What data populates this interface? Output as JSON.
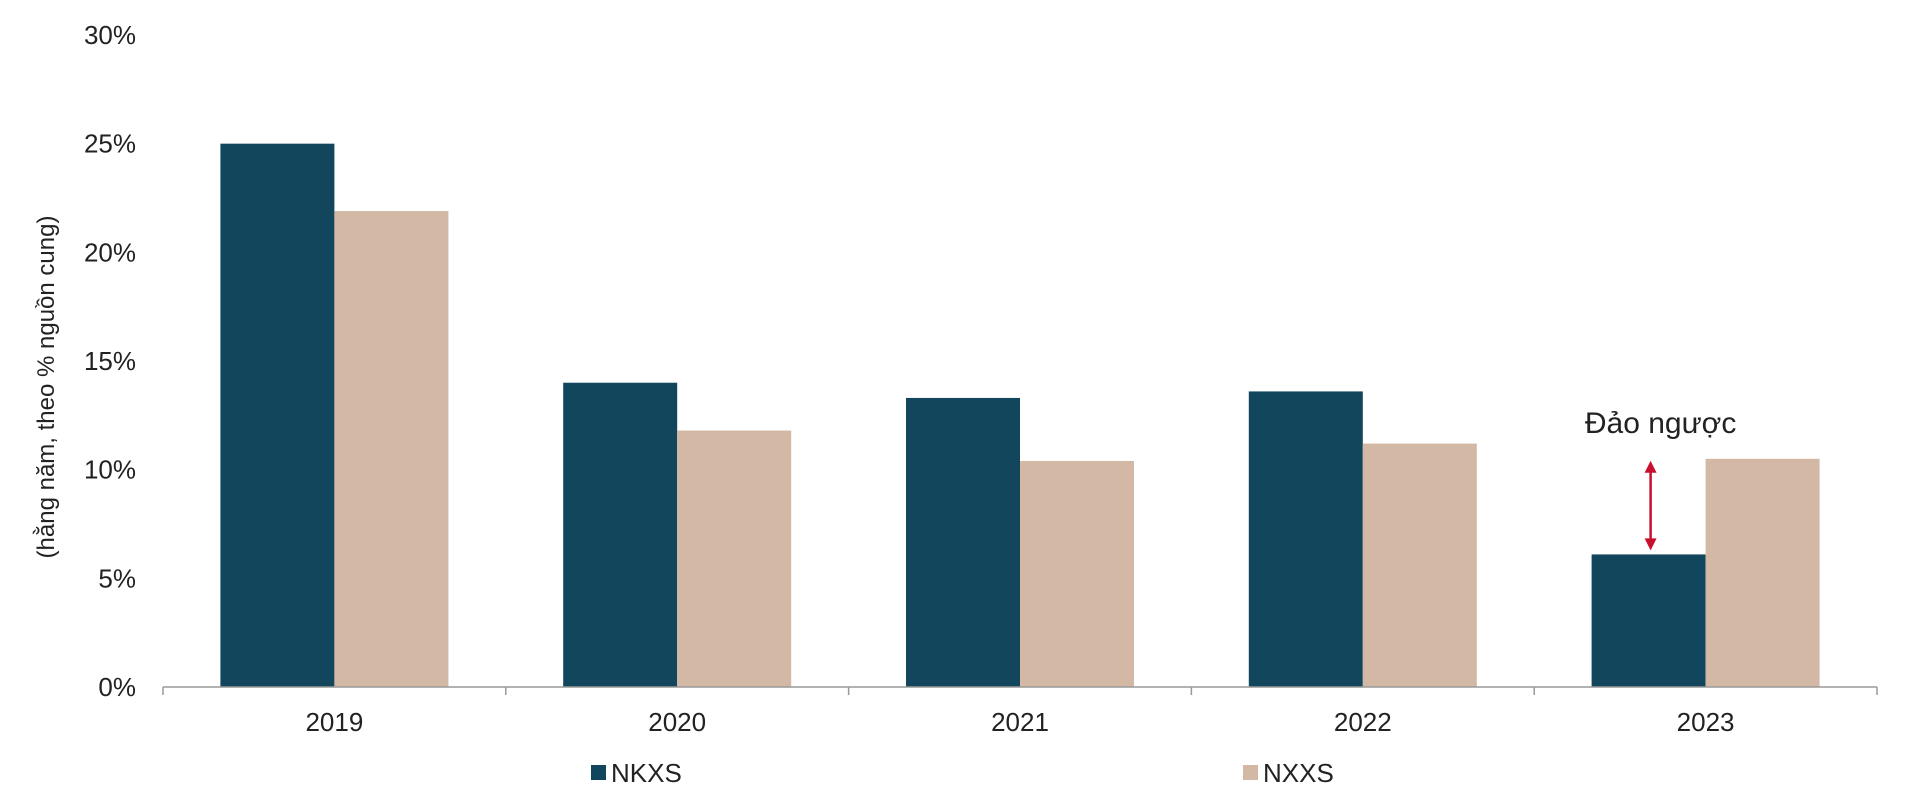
{
  "chart_data": {
    "type": "bar",
    "categories": [
      "2019",
      "2020",
      "2021",
      "2022",
      "2023"
    ],
    "series": [
      {
        "name": "NKXS",
        "values": [
          25.0,
          14.0,
          13.3,
          13.6,
          6.1
        ],
        "color": "#11465c"
      },
      {
        "name": "NXXS",
        "values": [
          21.9,
          11.8,
          10.4,
          11.2,
          10.5
        ],
        "color": "#d2b8a5"
      }
    ],
    "title": "",
    "xlabel": "",
    "ylabel": "(hằng năm, theo % nguồn cung)",
    "ylim": [
      0,
      30
    ],
    "yticks": [
      0,
      5,
      10,
      15,
      20,
      25,
      30
    ],
    "ytick_labels": [
      "0%",
      "5%",
      "10%",
      "15%",
      "20%",
      "25%",
      "30%"
    ],
    "grid": false,
    "legend_position": "bottom",
    "annotation": {
      "text": "Đảo ngược",
      "category": "2023",
      "arrow_color": "#c8102e"
    }
  }
}
